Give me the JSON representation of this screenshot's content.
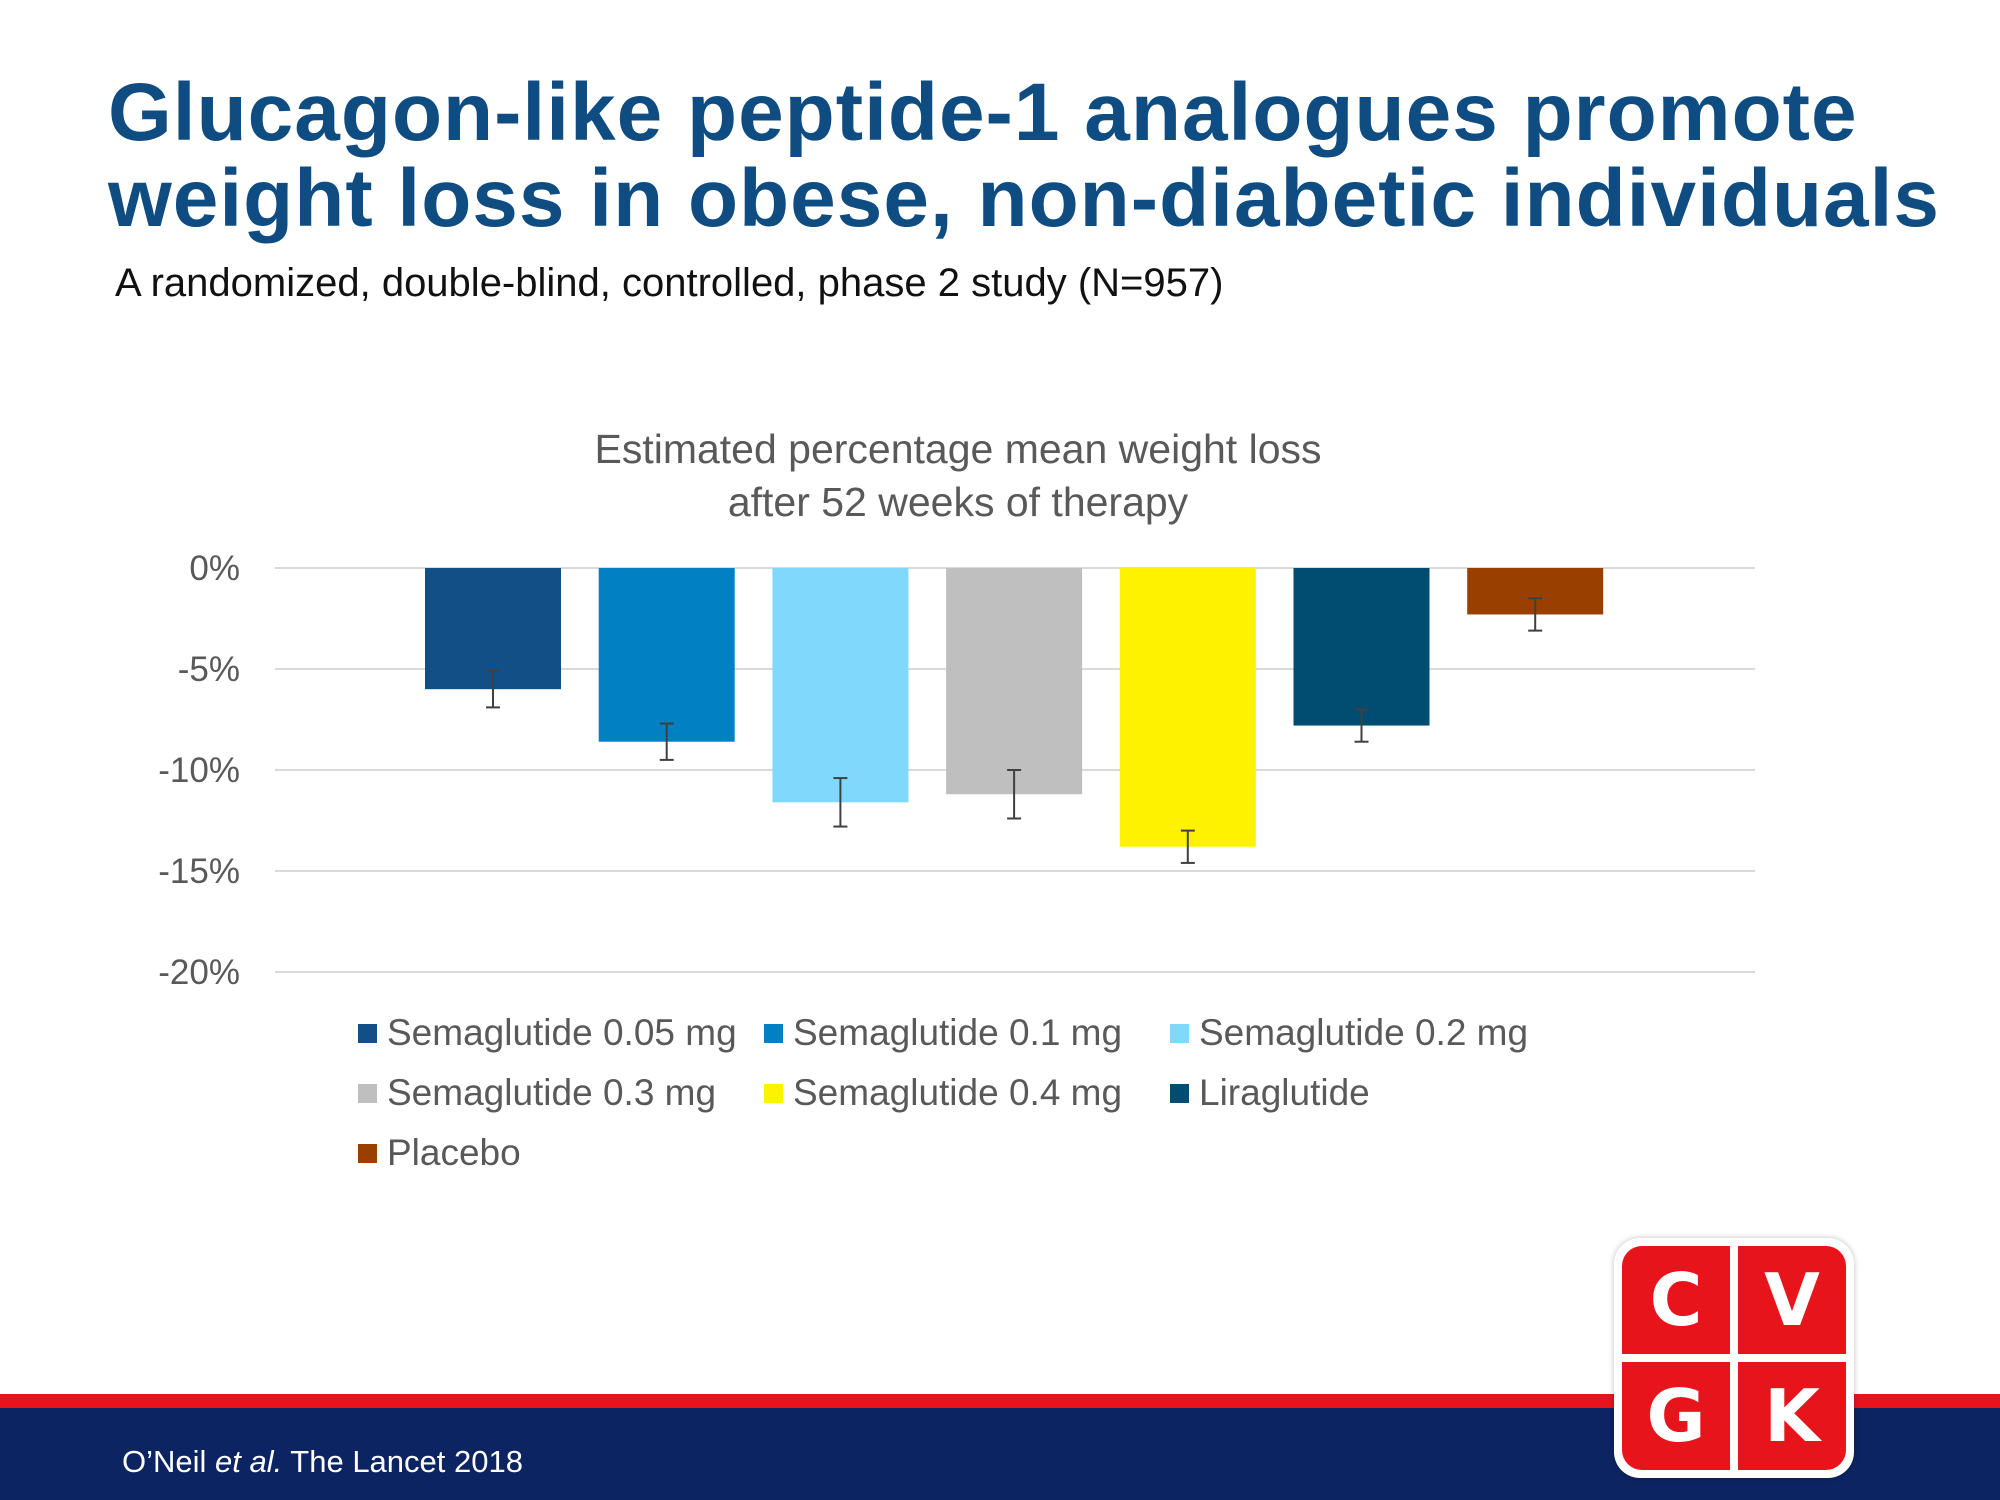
{
  "slide": {
    "title_line1": "Glucagon-like peptide-1 analogues promote",
    "title_line2": "weight loss in obese, non-diabetic individuals",
    "subtitle": "A randomized, double-blind, controlled, phase 2 study (N=957)",
    "title_color": "#0f4c81"
  },
  "chart_data": {
    "type": "bar",
    "title_lines": [
      "Estimated percentage mean weight loss",
      "after 52 weeks of therapy"
    ],
    "xlabel": "",
    "ylabel": "",
    "ylim": [
      -20,
      0
    ],
    "y_ticks": [
      0,
      -5,
      -10,
      -15,
      -20
    ],
    "y_tick_labels": [
      "0%",
      "-5%",
      "-10%",
      "-15%",
      "-20%"
    ],
    "grid": true,
    "legend_position": "bottom",
    "series": [
      {
        "name": "Semaglutide 0.05 mg",
        "value": -6.0,
        "error_low": -6.9,
        "error_high": -5.1,
        "color": "#114f86"
      },
      {
        "name": "Semaglutide 0.1 mg",
        "value": -8.6,
        "error_low": -9.5,
        "error_high": -7.7,
        "color": "#0181c3"
      },
      {
        "name": "Semaglutide 0.2 mg",
        "value": -11.6,
        "error_low": -12.8,
        "error_high": -10.4,
        "color": "#80d8fd"
      },
      {
        "name": "Semaglutide 0.3 mg",
        "value": -11.2,
        "error_low": -12.4,
        "error_high": -10.0,
        "color": "#bfbfbf"
      },
      {
        "name": "Semaglutide 0.4 mg",
        "value": -13.8,
        "error_low": -14.6,
        "error_high": -13.0,
        "color": "#fff200"
      },
      {
        "name": "Liraglutide",
        "value": -7.8,
        "error_low": -8.6,
        "error_high": -7.0,
        "color": "#004d71"
      },
      {
        "name": "Placebo",
        "value": -2.3,
        "error_low": -3.1,
        "error_high": -1.5,
        "color": "#994000"
      }
    ]
  },
  "footer": {
    "citation_author": "O’Neil ",
    "citation_etal": "et al.",
    "citation_rest": " The Lancet 2018"
  },
  "logo": {
    "letters": [
      "C",
      "V",
      "G",
      "K"
    ]
  }
}
